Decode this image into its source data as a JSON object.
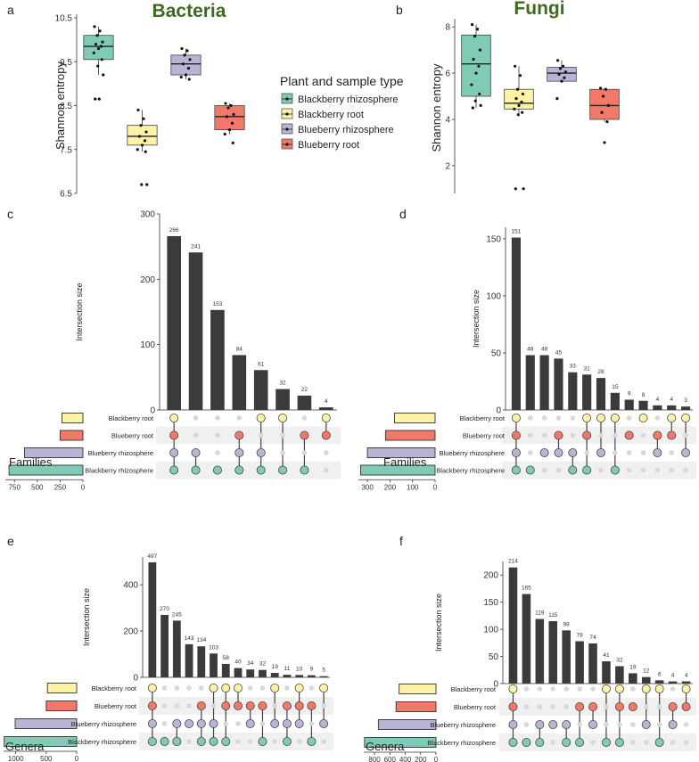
{
  "colors": {
    "blackberry_rhizosphere": "#7fcbb6",
    "blackberry_root": "#fbf4a6",
    "blueberry_rhizosphere": "#b9b4d6",
    "blueberry_root": "#f2786a",
    "bar": "#3b3b3b",
    "title_green": "#3d6b1f",
    "dot_inactive": "#d8d8d8"
  },
  "legend": {
    "title": "Plant and sample type",
    "items": [
      "Blackberry rhizosphere",
      "Blackberry root",
      "Blueberry rhizosphere",
      "Blueberry root"
    ]
  },
  "chart_data": [
    {
      "id": "a",
      "panel_label": "a",
      "type": "box",
      "title": "Bacteria",
      "ylabel": "Shannon entropy",
      "ylim": [
        6.5,
        10.5
      ],
      "yticks": [
        6.5,
        7.5,
        8.5,
        9.5,
        10.5
      ],
      "yticklabels": [
        "6.5",
        "7.5",
        "8.5",
        "9.5",
        "10.5"
      ],
      "groups": [
        {
          "name": "Blackberry rhizosphere",
          "min": 9.2,
          "q1": 9.55,
          "median": 9.85,
          "q3": 10.1,
          "max": 10.3,
          "outliers": [
            8.65,
            8.65
          ],
          "points": [
            10.3,
            10.2,
            10.1,
            9.95,
            9.9,
            9.85,
            9.8,
            9.7,
            9.55,
            9.4,
            9.2,
            8.65,
            8.65
          ]
        },
        {
          "name": "Blackberry root",
          "min": 7.45,
          "q1": 7.6,
          "median": 7.8,
          "q3": 8.05,
          "max": 8.4,
          "outliers": [
            6.7,
            6.7
          ],
          "points": [
            8.4,
            8.2,
            8.05,
            7.9,
            7.8,
            7.7,
            7.6,
            7.5,
            7.45,
            6.7,
            6.7
          ]
        },
        {
          "name": "Blueberry rhizosphere",
          "min": 9.1,
          "q1": 9.2,
          "median": 9.45,
          "q3": 9.65,
          "max": 9.8,
          "outliers": [],
          "points": [
            9.8,
            9.75,
            9.65,
            9.55,
            9.45,
            9.35,
            9.2,
            9.15,
            9.1
          ]
        },
        {
          "name": "Blueberry root",
          "min": 7.85,
          "q1": 7.95,
          "median": 8.25,
          "q3": 8.5,
          "max": 8.55,
          "outliers": [
            7.65
          ],
          "points": [
            8.55,
            8.5,
            8.45,
            8.3,
            8.25,
            8.1,
            7.95,
            7.85,
            7.65
          ]
        }
      ]
    },
    {
      "id": "b",
      "panel_label": "b",
      "type": "box",
      "title": "Fungi",
      "ylabel": "Shannon entropy",
      "ylim": [
        0.8,
        8.2
      ],
      "yticks": [
        2,
        4,
        6,
        8
      ],
      "yticklabels": [
        "2",
        "4",
        "6",
        "8"
      ],
      "groups": [
        {
          "name": "Blackberry rhizosphere",
          "min": 4.5,
          "q1": 5.0,
          "median": 6.4,
          "q3": 7.65,
          "max": 8.1,
          "outliers": [],
          "points": [
            8.1,
            7.9,
            7.6,
            7.0,
            6.6,
            6.3,
            6.0,
            5.5,
            5.1,
            4.8,
            4.6,
            4.5
          ]
        },
        {
          "name": "Blackberry root",
          "min": 4.2,
          "q1": 4.45,
          "median": 4.7,
          "q3": 5.3,
          "max": 6.3,
          "outliers": [
            1.0,
            1.0
          ],
          "points": [
            6.3,
            5.9,
            5.3,
            5.1,
            4.9,
            4.75,
            4.6,
            4.45,
            4.3,
            4.2,
            1.0,
            1.0
          ]
        },
        {
          "name": "Blueberry rhizosphere",
          "min": 5.6,
          "q1": 5.65,
          "median": 6.0,
          "q3": 6.25,
          "max": 6.55,
          "outliers": [
            4.9
          ],
          "points": [
            6.55,
            6.3,
            6.2,
            6.05,
            5.95,
            5.8,
            5.65,
            4.9
          ]
        },
        {
          "name": "Blueberry root",
          "min": 3.9,
          "q1": 4.0,
          "median": 4.6,
          "q3": 5.3,
          "max": 5.35,
          "outliers": [
            3.0
          ],
          "points": [
            5.35,
            5.3,
            5.0,
            4.6,
            4.3,
            3.9,
            3.0
          ]
        }
      ]
    },
    {
      "id": "c",
      "panel_label": "c",
      "type": "upset",
      "ylabel": "Intersection size",
      "set_size_label": "Families",
      "ylim": [
        0,
        300
      ],
      "yticks": [
        0,
        100,
        200,
        300
      ],
      "set_names": [
        "Blackberry root",
        "Blueberry root",
        "Blueberry rhizosphere",
        "Blackberry rhizosphere"
      ],
      "set_sizes": [
        230,
        250,
        640,
        810
      ],
      "set_xlim": 850,
      "set_ticks": [
        750,
        500,
        250,
        0
      ],
      "set_ticklabels": [
        "750",
        "500",
        "250",
        "0"
      ],
      "intersections": [
        {
          "size": 266,
          "label": "266",
          "sets": [
            0,
            1,
            2,
            3
          ]
        },
        {
          "size": 241,
          "label": "241",
          "sets": [
            2,
            3
          ]
        },
        {
          "size": 153,
          "label": "153",
          "sets": [
            3
          ]
        },
        {
          "size": 84,
          "label": "84",
          "sets": [
            1,
            2,
            3
          ]
        },
        {
          "size": 61,
          "label": "61",
          "sets": [
            0,
            2,
            3
          ]
        },
        {
          "size": 32,
          "label": "32",
          "sets": [
            0,
            3
          ]
        },
        {
          "size": 22,
          "label": "22",
          "sets": [
            1,
            3
          ]
        },
        {
          "size": 4,
          "label": "4",
          "sets": [
            0,
            1
          ]
        }
      ]
    },
    {
      "id": "d",
      "panel_label": "d",
      "type": "upset",
      "ylabel": "Intersection size",
      "set_size_label": "Families",
      "ylim": [
        0,
        160
      ],
      "yticks": [
        0,
        50,
        100,
        150
      ],
      "set_names": [
        "Blackberry root",
        "Blueberry root",
        "Blueberry rhizosphere",
        "Blackberry rhizosphere"
      ],
      "set_sizes": [
        180,
        220,
        300,
        330
      ],
      "set_xlim": 340,
      "set_ticks": [
        300,
        200,
        100,
        0
      ],
      "set_ticklabels": [
        "300",
        "200",
        "100",
        "0"
      ],
      "intersections": [
        {
          "size": 151,
          "label": "151",
          "sets": [
            0,
            1,
            2,
            3
          ]
        },
        {
          "size": 48,
          "label": "48",
          "sets": [
            3
          ]
        },
        {
          "size": 48,
          "label": "48",
          "sets": [
            2
          ]
        },
        {
          "size": 45,
          "label": "45",
          "sets": [
            1,
            2
          ]
        },
        {
          "size": 33,
          "label": "33",
          "sets": [
            2,
            3
          ]
        },
        {
          "size": 31,
          "label": "31",
          "sets": [
            0,
            1,
            3
          ]
        },
        {
          "size": 28,
          "label": "28",
          "sets": [
            0,
            2
          ]
        },
        {
          "size": 15,
          "label": "15",
          "sets": [
            0,
            3
          ]
        },
        {
          "size": 9,
          "label": "9",
          "sets": [
            1
          ]
        },
        {
          "size": 8,
          "label": "8",
          "sets": [
            0
          ]
        },
        {
          "size": 4,
          "label": "4",
          "sets": [
            1,
            2
          ]
        },
        {
          "size": 4,
          "label": "4",
          "sets": [
            0,
            1
          ]
        },
        {
          "size": 3,
          "label": "3",
          "sets": [
            0,
            2
          ]
        }
      ]
    },
    {
      "id": "e",
      "panel_label": "e",
      "type": "upset",
      "ylabel": "Intersection size",
      "set_size_label": "Genera",
      "ylim": [
        0,
        520
      ],
      "yticks": [
        0,
        200,
        400
      ],
      "set_names": [
        "Blackberry root",
        "Blueberry root",
        "Blueberry rhizosphere",
        "Blackberry rhizosphere"
      ],
      "set_sizes": [
        480,
        500,
        1010,
        1190
      ],
      "set_xlim": 1200,
      "set_ticks": [
        1000,
        500,
        0
      ],
      "set_ticklabels": [
        "1000",
        "500",
        "0"
      ],
      "intersections": [
        {
          "size": 497,
          "label": "497",
          "sets": [
            0,
            1,
            2,
            3
          ]
        },
        {
          "size": 270,
          "label": "270",
          "sets": [
            3
          ]
        },
        {
          "size": 245,
          "label": "245",
          "sets": [
            2,
            3
          ]
        },
        {
          "size": 143,
          "label": "143",
          "sets": [
            2
          ]
        },
        {
          "size": 134,
          "label": "134",
          "sets": [
            1,
            2,
            3
          ]
        },
        {
          "size": 103,
          "label": "103",
          "sets": [
            0,
            2,
            3
          ]
        },
        {
          "size": 58,
          "label": "58",
          "sets": [
            0,
            1,
            3
          ]
        },
        {
          "size": 40,
          "label": "40",
          "sets": [
            0,
            1
          ]
        },
        {
          "size": 34,
          "label": "34",
          "sets": [
            1,
            2
          ]
        },
        {
          "size": 32,
          "label": "32",
          "sets": [
            1,
            3
          ]
        },
        {
          "size": 19,
          "label": "19",
          "sets": [
            0,
            2
          ]
        },
        {
          "size": 11,
          "label": "11",
          "sets": [
            1,
            2,
            3
          ]
        },
        {
          "size": 10,
          "label": "10",
          "sets": [
            0,
            1,
            2
          ]
        },
        {
          "size": 9,
          "label": "9",
          "sets": [
            1,
            3
          ]
        },
        {
          "size": 5,
          "label": "5",
          "sets": [
            0,
            2
          ]
        }
      ]
    },
    {
      "id": "f",
      "panel_label": "f",
      "type": "upset",
      "ylabel": "Intersection size",
      "set_size_label": "Genera",
      "ylim": [
        0,
        225
      ],
      "yticks": [
        0,
        50,
        100,
        150,
        200
      ],
      "set_names": [
        "Blackberry root",
        "Blueberry root",
        "Blueberry rhizosphere",
        "Blackberry rhizosphere"
      ],
      "set_sizes": [
        480,
        520,
        750,
        930
      ],
      "set_xlim": 940,
      "set_ticks": [
        800,
        600,
        400,
        200,
        0
      ],
      "set_ticklabels": [
        "800",
        "600",
        "400",
        "200",
        "0"
      ],
      "intersections": [
        {
          "size": 214,
          "label": "214",
          "sets": [
            0,
            1,
            2,
            3
          ]
        },
        {
          "size": 165,
          "label": "165",
          "sets": [
            3
          ]
        },
        {
          "size": 119,
          "label": "119",
          "sets": [
            2,
            3
          ]
        },
        {
          "size": 115,
          "label": "115",
          "sets": [
            2
          ]
        },
        {
          "size": 98,
          "label": "98",
          "sets": [
            2,
            3
          ]
        },
        {
          "size": 78,
          "label": "78",
          "sets": [
            1,
            3
          ]
        },
        {
          "size": 74,
          "label": "74",
          "sets": [
            1,
            2
          ]
        },
        {
          "size": 41,
          "label": "41",
          "sets": [
            0,
            3
          ]
        },
        {
          "size": 32,
          "label": "32",
          "sets": [
            0,
            1,
            3
          ]
        },
        {
          "size": 19,
          "label": "19",
          "sets": [
            1
          ]
        },
        {
          "size": 12,
          "label": "12",
          "sets": [
            0,
            2
          ]
        },
        {
          "size": 6,
          "label": "6",
          "sets": [
            0,
            3
          ]
        },
        {
          "size": 4,
          "label": "4",
          "sets": [
            1,
            2
          ]
        },
        {
          "size": 4,
          "label": "4",
          "sets": [
            0,
            1
          ]
        }
      ]
    }
  ]
}
